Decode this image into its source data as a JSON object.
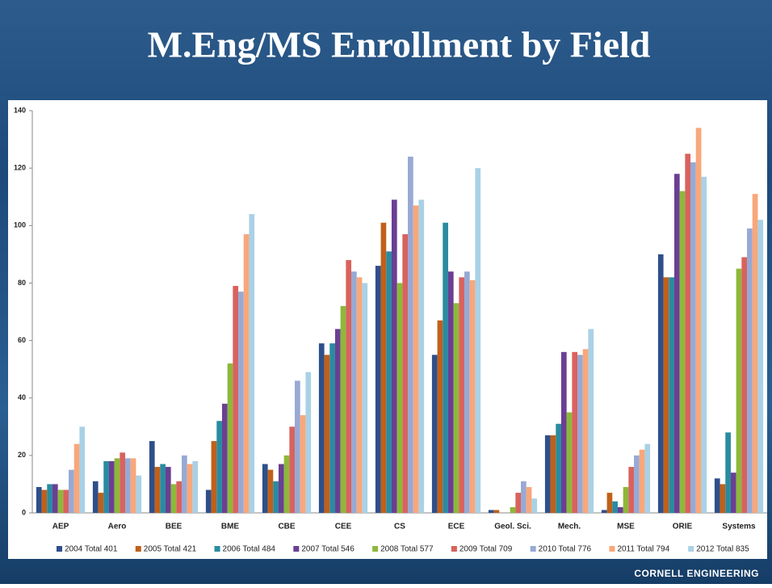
{
  "chart_data": {
    "type": "bar",
    "title": "M.Eng/MS Enrollment by Field",
    "categories": [
      "AEP",
      "Aero",
      "BEE",
      "BME",
      "CBE",
      "CEE",
      "CS",
      "ECE",
      "Geol. Sci.",
      "Mech.",
      "MSE",
      "ORIE",
      "Systems"
    ],
    "series": [
      {
        "name": "2004 Total 401",
        "color": "#2e4f8a",
        "values": [
          9,
          11,
          25,
          8,
          17,
          59,
          86,
          55,
          1,
          27,
          1,
          90,
          12
        ]
      },
      {
        "name": "2005 Total 421",
        "color": "#c0601a",
        "values": [
          8,
          7,
          16,
          25,
          15,
          55,
          101,
          67,
          1,
          27,
          7,
          82,
          10
        ]
      },
      {
        "name": "2006 Total 484",
        "color": "#2a8ba0",
        "values": [
          10,
          18,
          17,
          32,
          11,
          59,
          91,
          101,
          0,
          31,
          4,
          82,
          28
        ]
      },
      {
        "name": "2007 Total 546",
        "color": "#6a3f93",
        "values": [
          10,
          18,
          16,
          38,
          17,
          64,
          109,
          84,
          0,
          56,
          2,
          118,
          14
        ]
      },
      {
        "name": "2008 Total 577",
        "color": "#8db83a",
        "values": [
          8,
          19,
          10,
          52,
          20,
          72,
          80,
          73,
          2,
          35,
          9,
          112,
          85
        ]
      },
      {
        "name": "2009 Total 709",
        "color": "#d9625e",
        "values": [
          8,
          21,
          11,
          79,
          30,
          88,
          97,
          82,
          7,
          56,
          16,
          125,
          89
        ]
      },
      {
        "name": "2010 Total 776",
        "color": "#97a9d4",
        "values": [
          15,
          19,
          20,
          77,
          46,
          84,
          124,
          84,
          11,
          55,
          20,
          122,
          99
        ]
      },
      {
        "name": "2011 Total 794",
        "color": "#f9a77a",
        "values": [
          24,
          19,
          17,
          97,
          34,
          82,
          107,
          81,
          9,
          57,
          22,
          134,
          111
        ]
      },
      {
        "name": "2012 Total 835",
        "color": "#a9d1e6",
        "values": [
          30,
          13,
          18,
          104,
          49,
          80,
          109,
          120,
          5,
          64,
          24,
          117,
          102
        ]
      }
    ],
    "ylim": [
      0,
      140
    ],
    "yticks": [
      0,
      20,
      40,
      60,
      80,
      100,
      120,
      140
    ],
    "grid": false
  },
  "footer": "CORNELL ENGINEERING"
}
